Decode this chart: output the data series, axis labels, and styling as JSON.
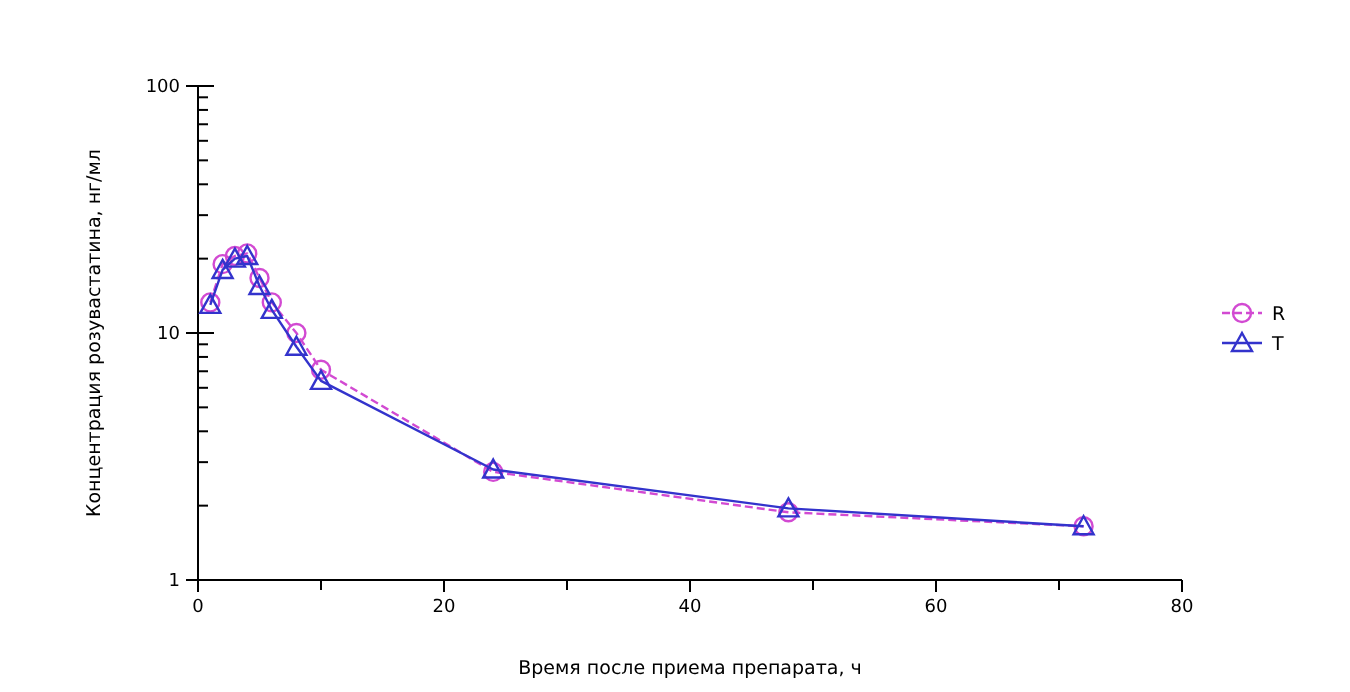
{
  "chart_data": {
    "type": "line",
    "xlabel": "Время после приема препарата, ч",
    "ylabel": "Концентрация розувастатина, нг/мл",
    "log": "y",
    "xlim": [
      0,
      80
    ],
    "ylim": [
      1,
      100
    ],
    "xticks": [
      0,
      {
        "value": 10,
        "label": null
      },
      20,
      {
        "value": 30,
        "label": null
      },
      40,
      {
        "value": 50,
        "label": null
      },
      60,
      {
        "value": 70,
        "label": null
      },
      80
    ],
    "yticks": [
      1,
      {
        "value": 2,
        "label": null
      },
      {
        "value": 3,
        "label": null
      },
      {
        "value": 4,
        "label": null
      },
      {
        "value": 5,
        "label": null
      },
      {
        "value": 6,
        "label": null
      },
      {
        "value": 7,
        "label": null
      },
      {
        "value": 8,
        "label": null
      },
      {
        "value": 9,
        "label": null
      },
      10,
      {
        "value": 20,
        "label": null
      },
      {
        "value": 30,
        "label": null
      },
      {
        "value": 40,
        "label": null
      },
      {
        "value": 50,
        "label": null
      },
      {
        "value": 60,
        "label": null
      },
      {
        "value": 70,
        "label": null
      },
      {
        "value": 80,
        "label": null
      },
      {
        "value": 90,
        "label": null
      },
      100
    ],
    "x": [
      1,
      2,
      3,
      4,
      5,
      6,
      8,
      10,
      24,
      48,
      72
    ],
    "legend": "right",
    "grid": false,
    "series": [
      {
        "name": "R",
        "color": "#d24ad2",
        "marker": "circle",
        "line_style": "dashed",
        "values": [
          13.3,
          19,
          20.5,
          21,
          16.7,
          13.3,
          10,
          7.1,
          2.74,
          1.88,
          1.65
        ]
      },
      {
        "name": "T",
        "color": "#3333cc",
        "marker": "triangle",
        "line_style": "solid",
        "values": [
          13,
          18,
          20,
          20.5,
          15.5,
          12.4,
          8.8,
          6.4,
          2.8,
          1.95,
          1.65
        ]
      }
    ]
  }
}
